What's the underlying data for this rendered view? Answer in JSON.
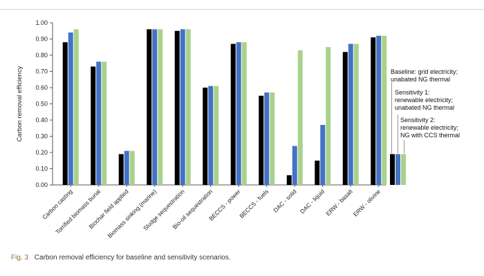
{
  "chart_data": {
    "type": "bar",
    "title": "",
    "xlabel": "",
    "ylabel": "Carbon removal efficiency",
    "ylim": [
      0,
      1
    ],
    "yticks": [
      "0.00",
      "0.10",
      "0.20",
      "0.30",
      "0.40",
      "0.50",
      "0.60",
      "0.70",
      "0.80",
      "0.90",
      "1.00"
    ],
    "grid": false,
    "categories": [
      "Carbon casting",
      "Torrified biomass burial",
      "Biochar field applied",
      "Biomass sinking (marine)",
      "Sludge sequestration",
      "Bio-oil sequestration",
      "BECCS - power",
      "BECCS - fuels",
      "DAC - solid",
      "DAC - liquid",
      "ERW - basalt",
      "ERW - olivine"
    ],
    "series": [
      {
        "name": "Baseline: grid electricity; unabated NG thermal",
        "color": "#000000",
        "values": [
          0.88,
          0.73,
          0.19,
          0.96,
          0.95,
          0.6,
          0.87,
          0.55,
          0.06,
          0.15,
          0.82,
          0.91
        ]
      },
      {
        "name": "Sensitivity 1: renewable electricity; unabated NG thermal",
        "color": "#4472c4",
        "values": [
          0.94,
          0.76,
          0.21,
          0.96,
          0.96,
          0.61,
          0.88,
          0.57,
          0.24,
          0.37,
          0.87,
          0.92
        ]
      },
      {
        "name": "Sensitivity 2: renewable electricity; NG with CCS thermal",
        "color": "#a9d18e",
        "values": [
          0.96,
          0.76,
          0.21,
          0.96,
          0.96,
          0.61,
          0.88,
          0.57,
          0.83,
          0.85,
          0.87,
          0.92
        ]
      }
    ],
    "legend": {
      "placement": "right",
      "bar_values": [
        0.19,
        0.19,
        0.19
      ],
      "entries": [
        [
          "Baseline: grid electricity;",
          "unabated NG thermal"
        ],
        [
          "Sensitivity 1:",
          "renewable electricity;",
          "unabated NG thermal"
        ],
        [
          "Sensitivity 2:",
          "renewable electricity;",
          "NG with CCS thermal"
        ]
      ]
    }
  },
  "caption": {
    "label": "Fig. 3",
    "text": "Carbon removal efficiency for baseline and sensitivity scenarios."
  }
}
